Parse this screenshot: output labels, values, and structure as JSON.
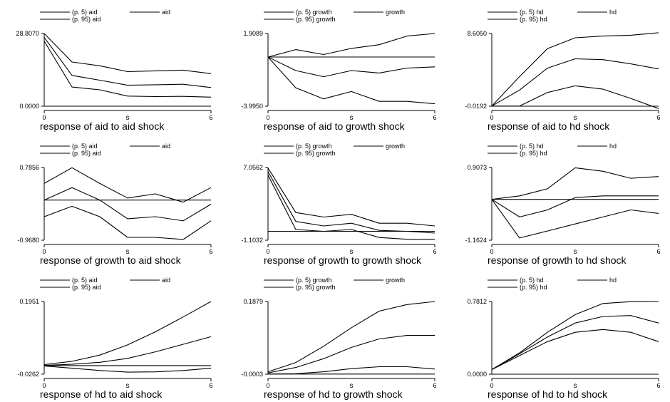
{
  "chart_data": [
    {
      "type": "line",
      "title": "",
      "caption": "response of aid to aid shock",
      "xlabel": "s",
      "ylabel": "",
      "x": [
        0,
        1,
        2,
        3,
        4,
        5,
        6
      ],
      "x_ticks": [
        "0",
        "6"
      ],
      "y_ticks": [
        "28.8070",
        "0.0000"
      ],
      "ylim": [
        0.0,
        28.807
      ],
      "legend_position": "top",
      "series": [
        {
          "name": "(p. 5) aid",
          "values": [
            25.8,
            7.6,
            6.5,
            4.0,
            3.8,
            3.9,
            3.6
          ]
        },
        {
          "name": "aid",
          "values": [
            27.3,
            12.2,
            10.3,
            8.3,
            8.5,
            8.7,
            7.4
          ]
        },
        {
          "name": "(p. 95) aid",
          "values": [
            28.807,
            17.5,
            16.0,
            13.7,
            14.0,
            14.3,
            12.9
          ]
        },
        {
          "name": "",
          "values": [
            0,
            0,
            0,
            0,
            0,
            0,
            0
          ]
        }
      ]
    },
    {
      "type": "line",
      "title": "",
      "caption": "response of aid to growth shock",
      "xlabel": "s",
      "ylabel": "",
      "x": [
        0,
        1,
        2,
        3,
        4,
        5,
        6
      ],
      "x_ticks": [
        "0",
        "6"
      ],
      "y_ticks": [
        "1.9089",
        "-3.9950"
      ],
      "ylim": [
        -3.995,
        1.9089
      ],
      "legend_position": "top",
      "series": [
        {
          "name": "(p. 5) growth",
          "values": [
            0.0,
            -2.5,
            -3.4,
            -2.8,
            -3.6,
            -3.6,
            -3.8
          ]
        },
        {
          "name": "growth",
          "values": [
            0.0,
            -1.1,
            -1.6,
            -1.1,
            -1.3,
            -0.9,
            -0.8
          ]
        },
        {
          "name": "(p. 95) growth",
          "values": [
            0.0,
            0.6,
            0.2,
            0.7,
            1.0,
            1.7,
            1.9089
          ]
        },
        {
          "name": "",
          "values": [
            0,
            0,
            0,
            0,
            0,
            0,
            0
          ]
        }
      ]
    },
    {
      "type": "line",
      "title": "",
      "caption": "response of aid to hd shock",
      "xlabel": "s",
      "ylabel": "",
      "x": [
        0,
        1,
        2,
        3,
        4,
        5,
        6
      ],
      "x_ticks": [
        "0",
        "6"
      ],
      "y_ticks": [
        "8.6050",
        "-0.0192"
      ],
      "ylim": [
        -0.0192,
        8.605
      ],
      "legend_position": "top",
      "series": [
        {
          "name": "(p. 5) hd",
          "values": [
            0.0,
            0.0,
            1.6,
            2.4,
            2.0,
            0.9,
            -0.3
          ]
        },
        {
          "name": "hd",
          "values": [
            0.0,
            1.9,
            4.5,
            5.6,
            5.5,
            5.0,
            4.4
          ]
        },
        {
          "name": "(p. 95) hd",
          "values": [
            0.0,
            3.5,
            6.8,
            8.1,
            8.3,
            8.4,
            8.7
          ]
        },
        {
          "name": "",
          "values": [
            -0.0192,
            -0.0192,
            -0.0192,
            -0.0192,
            -0.0192,
            -0.0192,
            -0.0192
          ]
        }
      ]
    },
    {
      "type": "line",
      "title": "",
      "caption": "response of growth to aid shock",
      "xlabel": "s",
      "ylabel": "",
      "x": [
        0,
        1,
        2,
        3,
        4,
        5,
        6
      ],
      "x_ticks": [
        "0",
        "6"
      ],
      "y_ticks": [
        "0.7856",
        "-0.9680"
      ],
      "ylim": [
        -0.968,
        0.7856
      ],
      "legend_position": "top",
      "series": [
        {
          "name": "(p. 5) aid",
          "values": [
            -0.4,
            -0.15,
            -0.4,
            -0.9,
            -0.9,
            -0.95,
            -0.5
          ]
        },
        {
          "name": "aid",
          "values": [
            0.0,
            0.3,
            0.0,
            -0.45,
            -0.4,
            -0.5,
            -0.1
          ]
        },
        {
          "name": "(p. 95) aid",
          "values": [
            0.4,
            0.78,
            0.4,
            0.05,
            0.15,
            -0.05,
            0.3
          ]
        },
        {
          "name": "",
          "values": [
            0,
            0,
            0,
            0,
            0,
            0,
            0
          ]
        }
      ]
    },
    {
      "type": "line",
      "title": "",
      "caption": "response of growth to growth shock",
      "xlabel": "s",
      "ylabel": "",
      "x": [
        0,
        1,
        2,
        3,
        4,
        5,
        6
      ],
      "x_ticks": [
        "0",
        "6"
      ],
      "y_ticks": [
        "7.0562",
        "-1.1032"
      ],
      "ylim": [
        -1.1032,
        7.0562
      ],
      "legend_position": "top",
      "series": [
        {
          "name": "(p. 5) growth",
          "values": [
            6.2,
            0.1,
            -0.1,
            0.1,
            -0.8,
            -1.0,
            -1.0
          ]
        },
        {
          "name": "growth",
          "values": [
            6.6,
            1.0,
            0.5,
            0.8,
            0.0,
            -0.1,
            -0.3
          ]
        },
        {
          "name": "(p. 95) growth",
          "values": [
            7.0,
            2.0,
            1.5,
            1.8,
            0.8,
            0.8,
            0.5
          ]
        },
        {
          "name": "",
          "values": [
            -0.1,
            -0.1,
            -0.1,
            -0.1,
            -0.1,
            -0.1,
            -0.1
          ]
        }
      ]
    },
    {
      "type": "line",
      "title": "",
      "caption": "response of growth to hd shock",
      "xlabel": "s",
      "ylabel": "",
      "x": [
        0,
        1,
        2,
        3,
        4,
        5,
        6
      ],
      "x_ticks": [
        "0",
        "6"
      ],
      "y_ticks": [
        "0.9073",
        "-1.1624"
      ],
      "ylim": [
        -1.1624,
        0.9073
      ],
      "legend_position": "top",
      "series": [
        {
          "name": "(p. 5) hd",
          "values": [
            0.0,
            -1.1,
            -0.9,
            -0.7,
            -0.5,
            -0.3,
            -0.4
          ]
        },
        {
          "name": "hd",
          "values": [
            0.0,
            -0.5,
            -0.3,
            0.05,
            0.1,
            0.1,
            0.1
          ]
        },
        {
          "name": "(p. 95) hd",
          "values": [
            0.0,
            0.1,
            0.3,
            0.9,
            0.8,
            0.6,
            0.65
          ]
        },
        {
          "name": "",
          "values": [
            0,
            0,
            0,
            0,
            0,
            0,
            0
          ]
        }
      ]
    },
    {
      "type": "line",
      "title": "",
      "caption": "response of hd to aid shock",
      "xlabel": "s",
      "ylabel": "",
      "x": [
        0,
        1,
        2,
        3,
        4,
        5,
        6
      ],
      "x_ticks": [
        "0",
        "6"
      ],
      "y_ticks": [
        "0.1951",
        "-0.0262"
      ],
      "ylim": [
        -0.0262,
        0.1951
      ],
      "legend_position": "top",
      "series": [
        {
          "name": "(p. 5) aid",
          "values": [
            -0.001,
            -0.008,
            -0.015,
            -0.02,
            -0.019,
            -0.015,
            -0.008
          ]
        },
        {
          "name": "aid",
          "values": [
            0.001,
            0.004,
            0.01,
            0.022,
            0.042,
            0.065,
            0.088
          ]
        },
        {
          "name": "(p. 95) aid",
          "values": [
            0.003,
            0.013,
            0.032,
            0.063,
            0.103,
            0.148,
            0.1951
          ]
        },
        {
          "name": "",
          "values": [
            0,
            0,
            0,
            0,
            0,
            0,
            0
          ]
        }
      ]
    },
    {
      "type": "line",
      "title": "",
      "caption": "response of hd to growth shock",
      "xlabel": "s",
      "ylabel": "",
      "x": [
        0,
        1,
        2,
        3,
        4,
        5,
        6
      ],
      "x_ticks": [
        "0",
        "6"
      ],
      "y_ticks": [
        "0.1879",
        "-0.0003"
      ],
      "ylim": [
        -0.0003,
        0.1879
      ],
      "legend_position": "top",
      "series": [
        {
          "name": "(p. 5) growth",
          "values": [
            0.0,
            0.001,
            0.006,
            0.014,
            0.019,
            0.019,
            0.013
          ]
        },
        {
          "name": "growth",
          "values": [
            0.003,
            0.017,
            0.04,
            0.069,
            0.091,
            0.1,
            0.1
          ]
        },
        {
          "name": "(p. 95) growth",
          "values": [
            0.006,
            0.03,
            0.072,
            0.12,
            0.163,
            0.18,
            0.1879
          ]
        },
        {
          "name": "",
          "values": [
            0,
            0,
            0,
            0,
            0,
            0,
            0
          ]
        }
      ]
    },
    {
      "type": "line",
      "title": "",
      "caption": "response of hd to hd shock",
      "xlabel": "s",
      "ylabel": "",
      "x": [
        0,
        1,
        2,
        3,
        4,
        5,
        6
      ],
      "x_ticks": [
        "0",
        "6"
      ],
      "y_ticks": [
        "0.7812",
        "0.0000"
      ],
      "ylim": [
        0.0,
        0.7812
      ],
      "legend_position": "top",
      "series": [
        {
          "name": "(p. 5) hd",
          "values": [
            0.05,
            0.2,
            0.35,
            0.45,
            0.48,
            0.45,
            0.35
          ]
        },
        {
          "name": "hd",
          "values": [
            0.05,
            0.22,
            0.4,
            0.55,
            0.62,
            0.63,
            0.55
          ]
        },
        {
          "name": "(p. 95) hd",
          "values": [
            0.05,
            0.23,
            0.45,
            0.64,
            0.76,
            0.78,
            0.7812
          ]
        },
        {
          "name": "",
          "values": [
            0,
            0,
            0,
            0,
            0,
            0,
            0
          ]
        }
      ]
    }
  ]
}
